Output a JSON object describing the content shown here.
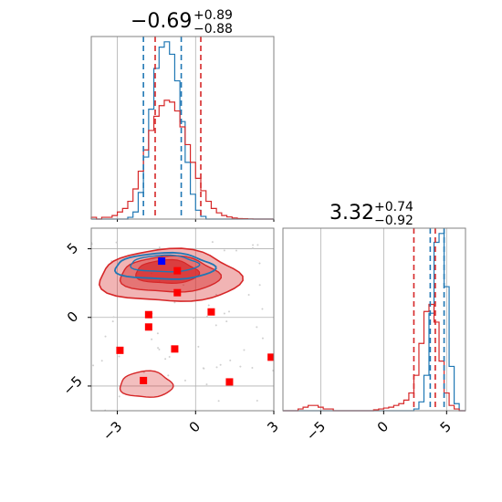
{
  "chart_data": {
    "type": "corner",
    "colors": {
      "red": "#d62728",
      "blue": "#1f77b4",
      "marker_red": "#ff0000",
      "marker_blue": "#0000ff",
      "grid": "#b0b0b0",
      "axes": "#808080"
    },
    "params": [
      {
        "title_value": "−0.69",
        "title_plus": "+0.89",
        "title_minus": "−0.88",
        "range": [
          -4.0,
          3.0
        ],
        "ticks": [
          -3,
          0,
          3
        ],
        "tick_labels": [
          "−3",
          "0",
          "3"
        ],
        "quantiles_blue": [
          -2.0,
          -0.55
        ],
        "quantiles_red": [
          -1.55,
          0.2
        ],
        "hist_x": [
          -4.0,
          -3.8,
          -3.6,
          -3.4,
          -3.2,
          -3.0,
          -2.8,
          -2.6,
          -2.4,
          -2.2,
          -2.0,
          -1.8,
          -1.6,
          -1.4,
          -1.2,
          -1.0,
          -0.8,
          -0.6,
          -0.4,
          -0.2,
          0.0,
          0.2,
          0.4,
          0.6,
          0.8,
          1.0,
          1.2,
          1.4,
          1.6,
          1.8,
          2.0,
          2.2,
          2.4,
          2.6,
          2.8,
          3.0
        ],
        "hist_blue": [
          0,
          0,
          0,
          0,
          0,
          0,
          0,
          0.01,
          0.04,
          0.15,
          0.35,
          0.62,
          0.85,
          0.97,
          1.0,
          0.93,
          0.78,
          0.55,
          0.32,
          0.14,
          0.05,
          0.015,
          0,
          0,
          0,
          0,
          0,
          0,
          0,
          0,
          0,
          0,
          0,
          0,
          0
        ],
        "hist_red": [
          0.01,
          0,
          0.01,
          0.01,
          0.02,
          0.04,
          0.06,
          0.1,
          0.17,
          0.27,
          0.39,
          0.5,
          0.58,
          0.64,
          0.67,
          0.66,
          0.61,
          0.52,
          0.42,
          0.32,
          0.23,
          0.16,
          0.1,
          0.06,
          0.035,
          0.02,
          0.012,
          0.006,
          0.003,
          0.002,
          0.001,
          0,
          0,
          0,
          0
        ]
      },
      {
        "title_value": "3.32",
        "title_plus": "+0.74",
        "title_minus": "−0.92",
        "range": [
          -8.0,
          6.5
        ],
        "ticks": [
          -5,
          0,
          5
        ],
        "tick_labels": [
          "−5",
          "0",
          "5"
        ],
        "quantiles_blue": [
          3.7,
          4.8
        ],
        "quantiles_red": [
          2.4,
          4.1
        ],
        "hist_x": [
          -8.0,
          -7.6,
          -7.2,
          -6.8,
          -6.4,
          -6.0,
          -5.6,
          -5.2,
          -4.8,
          -4.4,
          -4.0,
          -3.6,
          -3.2,
          -2.8,
          -2.4,
          -2.0,
          -1.6,
          -1.2,
          -0.8,
          -0.4,
          0.0,
          0.4,
          0.8,
          1.2,
          1.6,
          2.0,
          2.4,
          2.8,
          3.2,
          3.6,
          4.0,
          4.4,
          4.8,
          5.2,
          5.6,
          6.0,
          6.5
        ],
        "hist_blue": [
          0,
          0,
          0,
          0,
          0,
          0,
          0,
          0,
          0,
          0,
          0,
          0,
          0,
          0,
          0,
          0,
          0,
          0,
          0,
          0,
          0,
          0,
          0,
          0,
          0,
          0,
          0.01,
          0.05,
          0.2,
          0.55,
          0.95,
          1.0,
          0.7,
          0.25,
          0.04,
          0
        ],
        "hist_red": [
          0,
          0,
          0,
          0.01,
          0.02,
          0.03,
          0.03,
          0.02,
          0.01,
          0.01,
          0,
          0,
          0,
          0,
          0,
          0,
          0,
          0,
          0.005,
          0.01,
          0.015,
          0.02,
          0.03,
          0.04,
          0.06,
          0.1,
          0.2,
          0.38,
          0.56,
          0.6,
          0.5,
          0.28,
          0.1,
          0.03,
          0.01,
          0
        ]
      }
    ],
    "scatter_red_markers": [
      {
        "x": -0.7,
        "y": 3.4
      },
      {
        "x": -0.7,
        "y": 1.8
      },
      {
        "x": -1.8,
        "y": 0.2
      },
      {
        "x": -1.8,
        "y": -0.7
      },
      {
        "x": 0.6,
        "y": 0.4
      },
      {
        "x": -0.8,
        "y": -2.3
      },
      {
        "x": -2.9,
        "y": -2.4
      },
      {
        "x": 2.9,
        "y": -2.9
      },
      {
        "x": -2.0,
        "y": -4.6
      },
      {
        "x": 1.3,
        "y": -4.7
      }
    ],
    "scatter_blue_markers": [
      {
        "x": -1.3,
        "y": 4.1
      }
    ],
    "joint_contours": {
      "red_outer": {
        "cx": -1.0,
        "cy": 3.0,
        "rx": 2.7,
        "ry": 1.9
      },
      "red_mid": {
        "cx": -1.0,
        "cy": 3.1,
        "rx": 1.9,
        "ry": 1.3
      },
      "red_inner": {
        "cx": -1.1,
        "cy": 3.3,
        "rx": 1.2,
        "ry": 0.85
      },
      "red_secondary": {
        "cx": -1.9,
        "cy": -4.9,
        "rx": 1.0,
        "ry": 0.95
      },
      "blue_outer": {
        "cx": -1.2,
        "cy": 3.7,
        "rx": 1.9,
        "ry": 0.95
      },
      "blue_inner": {
        "cx": -1.2,
        "cy": 3.9,
        "rx": 1.3,
        "ry": 0.6
      }
    },
    "joint_range_y": [
      -6.8,
      6.5
    ],
    "joint_ticks_y": [
      5,
      0,
      -5
    ],
    "joint_tick_labels_y": [
      "5",
      "0",
      "−5"
    ]
  }
}
